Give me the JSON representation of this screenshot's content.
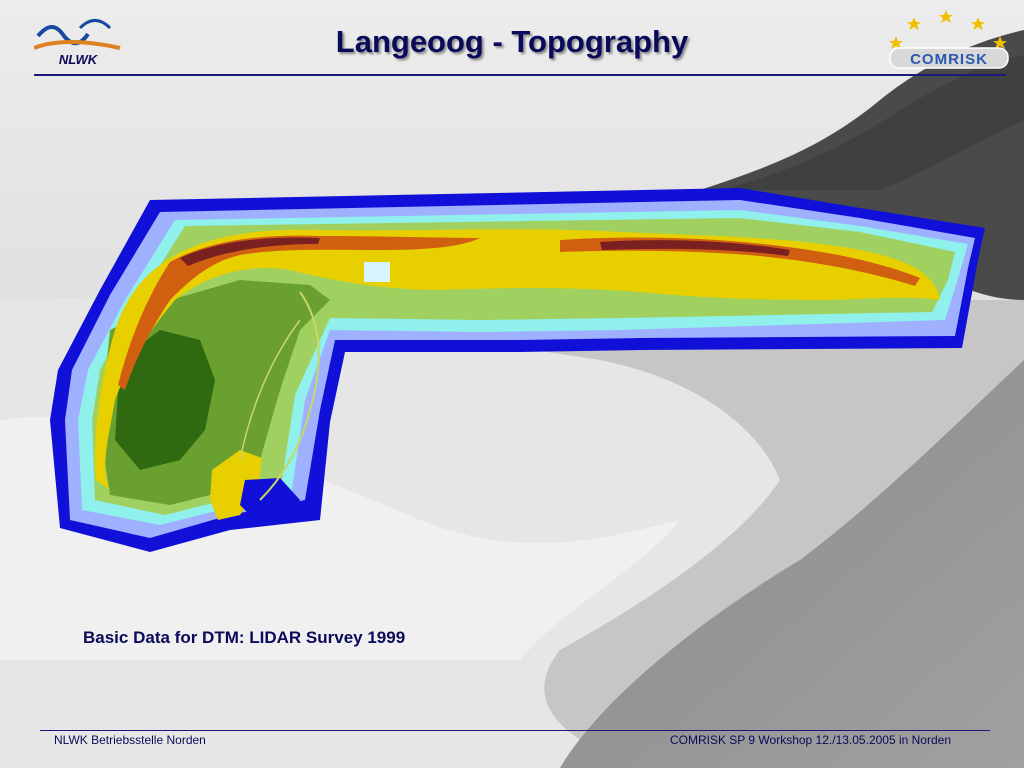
{
  "slide": {
    "title": "Langeoog - Topography",
    "caption": "Basic Data for DTM: LIDAR Survey 1999",
    "footer_left": "NLWK Betriebsstelle Norden",
    "footer_right": "COMRISK SP 9 Workshop 12./13.05.2005 in Norden"
  },
  "logos": {
    "left_text": "NLWK",
    "right_text": "COMRISK"
  },
  "map": {
    "subject": "Langeoog island topography",
    "colors": {
      "deep_water": "#1010d8",
      "shallow_water": "#9fb0ff",
      "tidal_flat": "#8ff0ec",
      "low_land": "#9fd060",
      "marsh": "#6aa030",
      "forest": "#2f6a10",
      "dunes_mid": "#e8d000",
      "dunes_high": "#d06010",
      "dunes_peak": "#7a2020"
    }
  },
  "theme": {
    "title_color": "#0a0a5a",
    "rule_color": "#1a1a7a"
  }
}
